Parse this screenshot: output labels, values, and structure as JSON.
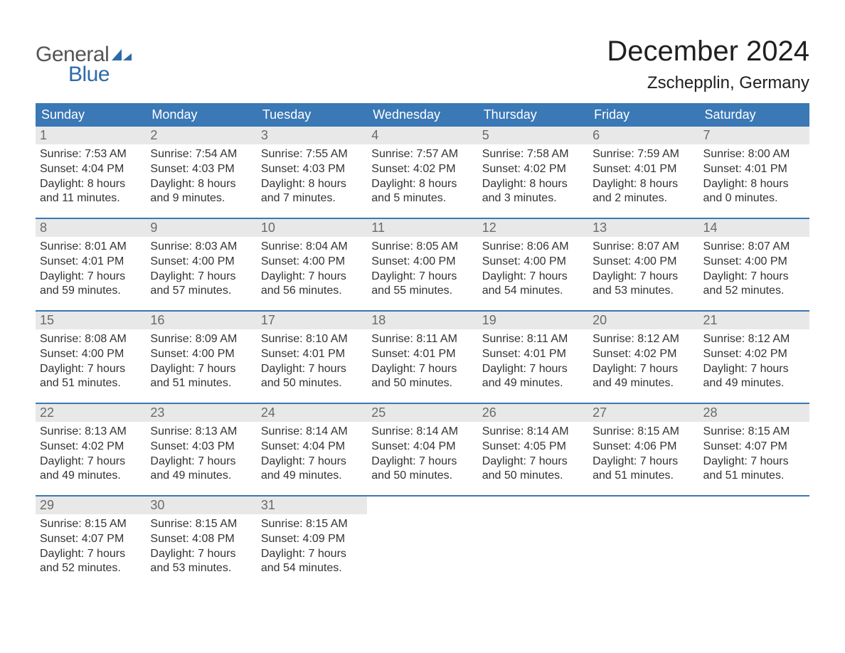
{
  "brand": {
    "text_general": "General",
    "text_blue": "Blue",
    "icon_color": "#2f6aa8"
  },
  "title": {
    "month_year": "December 2024",
    "location": "Zschepplin, Germany"
  },
  "colors": {
    "header_bg": "#3a78b6",
    "header_text": "#ffffff",
    "daynum_bg": "#e8e8e8",
    "daynum_text": "#6a6a6a",
    "body_text": "#333333",
    "week_border": "#3a78b6",
    "page_bg": "#ffffff"
  },
  "day_headers": [
    "Sunday",
    "Monday",
    "Tuesday",
    "Wednesday",
    "Thursday",
    "Friday",
    "Saturday"
  ],
  "weeks": [
    [
      {
        "n": "1",
        "sunrise": "Sunrise: 7:53 AM",
        "sunset": "Sunset: 4:04 PM",
        "dl1": "Daylight: 8 hours",
        "dl2": "and 11 minutes."
      },
      {
        "n": "2",
        "sunrise": "Sunrise: 7:54 AM",
        "sunset": "Sunset: 4:03 PM",
        "dl1": "Daylight: 8 hours",
        "dl2": "and 9 minutes."
      },
      {
        "n": "3",
        "sunrise": "Sunrise: 7:55 AM",
        "sunset": "Sunset: 4:03 PM",
        "dl1": "Daylight: 8 hours",
        "dl2": "and 7 minutes."
      },
      {
        "n": "4",
        "sunrise": "Sunrise: 7:57 AM",
        "sunset": "Sunset: 4:02 PM",
        "dl1": "Daylight: 8 hours",
        "dl2": "and 5 minutes."
      },
      {
        "n": "5",
        "sunrise": "Sunrise: 7:58 AM",
        "sunset": "Sunset: 4:02 PM",
        "dl1": "Daylight: 8 hours",
        "dl2": "and 3 minutes."
      },
      {
        "n": "6",
        "sunrise": "Sunrise: 7:59 AM",
        "sunset": "Sunset: 4:01 PM",
        "dl1": "Daylight: 8 hours",
        "dl2": "and 2 minutes."
      },
      {
        "n": "7",
        "sunrise": "Sunrise: 8:00 AM",
        "sunset": "Sunset: 4:01 PM",
        "dl1": "Daylight: 8 hours",
        "dl2": "and 0 minutes."
      }
    ],
    [
      {
        "n": "8",
        "sunrise": "Sunrise: 8:01 AM",
        "sunset": "Sunset: 4:01 PM",
        "dl1": "Daylight: 7 hours",
        "dl2": "and 59 minutes."
      },
      {
        "n": "9",
        "sunrise": "Sunrise: 8:03 AM",
        "sunset": "Sunset: 4:00 PM",
        "dl1": "Daylight: 7 hours",
        "dl2": "and 57 minutes."
      },
      {
        "n": "10",
        "sunrise": "Sunrise: 8:04 AM",
        "sunset": "Sunset: 4:00 PM",
        "dl1": "Daylight: 7 hours",
        "dl2": "and 56 minutes."
      },
      {
        "n": "11",
        "sunrise": "Sunrise: 8:05 AM",
        "sunset": "Sunset: 4:00 PM",
        "dl1": "Daylight: 7 hours",
        "dl2": "and 55 minutes."
      },
      {
        "n": "12",
        "sunrise": "Sunrise: 8:06 AM",
        "sunset": "Sunset: 4:00 PM",
        "dl1": "Daylight: 7 hours",
        "dl2": "and 54 minutes."
      },
      {
        "n": "13",
        "sunrise": "Sunrise: 8:07 AM",
        "sunset": "Sunset: 4:00 PM",
        "dl1": "Daylight: 7 hours",
        "dl2": "and 53 minutes."
      },
      {
        "n": "14",
        "sunrise": "Sunrise: 8:07 AM",
        "sunset": "Sunset: 4:00 PM",
        "dl1": "Daylight: 7 hours",
        "dl2": "and 52 minutes."
      }
    ],
    [
      {
        "n": "15",
        "sunrise": "Sunrise: 8:08 AM",
        "sunset": "Sunset: 4:00 PM",
        "dl1": "Daylight: 7 hours",
        "dl2": "and 51 minutes."
      },
      {
        "n": "16",
        "sunrise": "Sunrise: 8:09 AM",
        "sunset": "Sunset: 4:00 PM",
        "dl1": "Daylight: 7 hours",
        "dl2": "and 51 minutes."
      },
      {
        "n": "17",
        "sunrise": "Sunrise: 8:10 AM",
        "sunset": "Sunset: 4:01 PM",
        "dl1": "Daylight: 7 hours",
        "dl2": "and 50 minutes."
      },
      {
        "n": "18",
        "sunrise": "Sunrise: 8:11 AM",
        "sunset": "Sunset: 4:01 PM",
        "dl1": "Daylight: 7 hours",
        "dl2": "and 50 minutes."
      },
      {
        "n": "19",
        "sunrise": "Sunrise: 8:11 AM",
        "sunset": "Sunset: 4:01 PM",
        "dl1": "Daylight: 7 hours",
        "dl2": "and 49 minutes."
      },
      {
        "n": "20",
        "sunrise": "Sunrise: 8:12 AM",
        "sunset": "Sunset: 4:02 PM",
        "dl1": "Daylight: 7 hours",
        "dl2": "and 49 minutes."
      },
      {
        "n": "21",
        "sunrise": "Sunrise: 8:12 AM",
        "sunset": "Sunset: 4:02 PM",
        "dl1": "Daylight: 7 hours",
        "dl2": "and 49 minutes."
      }
    ],
    [
      {
        "n": "22",
        "sunrise": "Sunrise: 8:13 AM",
        "sunset": "Sunset: 4:02 PM",
        "dl1": "Daylight: 7 hours",
        "dl2": "and 49 minutes."
      },
      {
        "n": "23",
        "sunrise": "Sunrise: 8:13 AM",
        "sunset": "Sunset: 4:03 PM",
        "dl1": "Daylight: 7 hours",
        "dl2": "and 49 minutes."
      },
      {
        "n": "24",
        "sunrise": "Sunrise: 8:14 AM",
        "sunset": "Sunset: 4:04 PM",
        "dl1": "Daylight: 7 hours",
        "dl2": "and 49 minutes."
      },
      {
        "n": "25",
        "sunrise": "Sunrise: 8:14 AM",
        "sunset": "Sunset: 4:04 PM",
        "dl1": "Daylight: 7 hours",
        "dl2": "and 50 minutes."
      },
      {
        "n": "26",
        "sunrise": "Sunrise: 8:14 AM",
        "sunset": "Sunset: 4:05 PM",
        "dl1": "Daylight: 7 hours",
        "dl2": "and 50 minutes."
      },
      {
        "n": "27",
        "sunrise": "Sunrise: 8:15 AM",
        "sunset": "Sunset: 4:06 PM",
        "dl1": "Daylight: 7 hours",
        "dl2": "and 51 minutes."
      },
      {
        "n": "28",
        "sunrise": "Sunrise: 8:15 AM",
        "sunset": "Sunset: 4:07 PM",
        "dl1": "Daylight: 7 hours",
        "dl2": "and 51 minutes."
      }
    ],
    [
      {
        "n": "29",
        "sunrise": "Sunrise: 8:15 AM",
        "sunset": "Sunset: 4:07 PM",
        "dl1": "Daylight: 7 hours",
        "dl2": "and 52 minutes."
      },
      {
        "n": "30",
        "sunrise": "Sunrise: 8:15 AM",
        "sunset": "Sunset: 4:08 PM",
        "dl1": "Daylight: 7 hours",
        "dl2": "and 53 minutes."
      },
      {
        "n": "31",
        "sunrise": "Sunrise: 8:15 AM",
        "sunset": "Sunset: 4:09 PM",
        "dl1": "Daylight: 7 hours",
        "dl2": "and 54 minutes."
      },
      {
        "empty": true
      },
      {
        "empty": true
      },
      {
        "empty": true
      },
      {
        "empty": true
      }
    ]
  ]
}
